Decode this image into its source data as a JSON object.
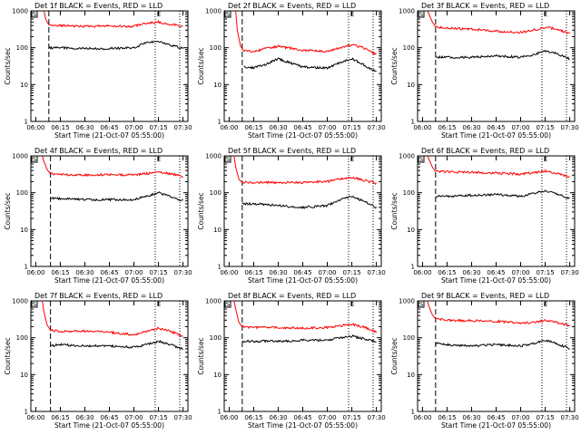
{
  "panels": [
    {
      "title": "Det 1f BLACK = Events, RED = LLD",
      "start_marker": "S",
      "end_marker": "E"
    },
    {
      "title": "Det 2f BLACK = Events, RED = LLD",
      "start_marker": "S",
      "end_marker": "E"
    },
    {
      "title": "Det 3f BLACK = Events, RED = LLD",
      "start_marker": "S",
      "end_marker": "E"
    },
    {
      "title": "Det 4f BLACK = Events, RED = LLD",
      "start_marker": "S",
      "end_marker": "E"
    },
    {
      "title": "Det 5f BLACK = Events, RED = LLD",
      "start_marker": "S",
      "end_marker": "E"
    },
    {
      "title": "Det 6f BLACK = Events, RED = LLD",
      "start_marker": "S",
      "end_marker": "E"
    },
    {
      "title": "Det 7f BLACK = Events, RED = LLD",
      "start_marker": "S",
      "end_marker": "E"
    },
    {
      "title": "Det 8f BLACK = Events, RED = LLD",
      "start_marker": "S",
      "end_marker": "E"
    },
    {
      "title": "Det 9f BLACK = Events, RED = LLD",
      "start_marker": "S",
      "end_marker": "E"
    }
  ],
  "chart_data": [
    {
      "type": "line",
      "title": "Det 1f BLACK = Events, RED = LLD",
      "xlabel": "Start Time (21-Oct-07 05:55:00)",
      "ylabel": "Counts/sec",
      "yscale": "log",
      "ylim": [
        1,
        1000
      ],
      "x_ticks": [
        "06:00",
        "06:15",
        "06:30",
        "06:45",
        "07:00",
        "07:15",
        "07:30"
      ],
      "y_ticks": [
        "1",
        "10",
        "100",
        "1000"
      ],
      "x": [
        "06:05",
        "06:06",
        "06:08",
        "06:15",
        "06:30",
        "06:45",
        "07:00",
        "07:08",
        "07:15",
        "07:22",
        "07:30"
      ],
      "series": [
        {
          "color": "#ff0000",
          "values": [
            1000,
            600,
            420,
            400,
            380,
            390,
            380,
            460,
            500,
            430,
            380
          ]
        },
        {
          "color": "#000000",
          "values": [
            null,
            null,
            100,
            100,
            95,
            95,
            100,
            140,
            150,
            120,
            95
          ]
        }
      ],
      "vlines": [
        {
          "x": "06:08",
          "style": "dashed"
        },
        {
          "x": "07:13",
          "style": "dotted"
        },
        {
          "x": "07:28",
          "style": "dotted"
        }
      ]
    },
    {
      "type": "line",
      "title": "Det 2f BLACK = Events, RED = LLD",
      "xlabel": "Start Time (21-Oct-07 05:55:00)",
      "ylabel": "Counts/sec",
      "yscale": "log",
      "ylim": [
        1,
        1000
      ],
      "x_ticks": [
        "06:00",
        "06:15",
        "06:30",
        "06:45",
        "07:00",
        "07:15",
        "07:30"
      ],
      "y_ticks": [
        "1",
        "10",
        "100",
        "1000"
      ],
      "x": [
        "06:04",
        "06:05",
        "06:07",
        "06:09",
        "06:15",
        "06:22",
        "06:30",
        "06:45",
        "07:00",
        "07:08",
        "07:15",
        "07:22",
        "07:30"
      ],
      "series": [
        {
          "color": "#ff0000",
          "values": [
            1000,
            300,
            110,
            80,
            80,
            95,
            110,
            85,
            80,
            100,
            120,
            100,
            65
          ]
        },
        {
          "color": "#000000",
          "values": [
            null,
            null,
            null,
            30,
            28,
            35,
            50,
            30,
            28,
            40,
            50,
            35,
            22
          ]
        }
      ],
      "vlines": [
        {
          "x": "06:08",
          "style": "dashed"
        },
        {
          "x": "07:13",
          "style": "dotted"
        },
        {
          "x": "07:28",
          "style": "dotted"
        }
      ]
    },
    {
      "type": "line",
      "title": "Det 3f BLACK = Events, RED = LLD",
      "xlabel": "Start Time (21-Oct-07 05:55:00)",
      "ylabel": "Counts/sec",
      "yscale": "log",
      "ylim": [
        1,
        1000
      ],
      "x_ticks": [
        "06:00",
        "06:15",
        "06:30",
        "06:45",
        "07:00",
        "07:15",
        "07:30"
      ],
      "y_ticks": [
        "1",
        "10",
        "100",
        "1000"
      ],
      "x": [
        "06:03",
        "06:04",
        "06:06",
        "06:08",
        "06:15",
        "06:30",
        "06:45",
        "07:00",
        "07:08",
        "07:15",
        "07:22",
        "07:30"
      ],
      "series": [
        {
          "color": "#ff0000",
          "values": [
            1000,
            800,
            500,
            370,
            340,
            320,
            280,
            260,
            300,
            360,
            320,
            240
          ]
        },
        {
          "color": "#000000",
          "values": [
            null,
            null,
            null,
            55,
            55,
            55,
            60,
            55,
            65,
            80,
            70,
            50
          ]
        }
      ],
      "vlines": [
        {
          "x": "06:08",
          "style": "dashed"
        },
        {
          "x": "07:13",
          "style": "dotted"
        },
        {
          "x": "07:28",
          "style": "dotted"
        }
      ]
    },
    {
      "type": "line",
      "title": "Det 4f BLACK = Events, RED = LLD",
      "xlabel": "Start Time (21-Oct-07 05:55:00)",
      "ylabel": "Counts/sec",
      "yscale": "log",
      "ylim": [
        1,
        1000
      ],
      "x_ticks": [
        "06:00",
        "06:15",
        "06:30",
        "06:45",
        "07:00",
        "07:15",
        "07:30"
      ],
      "y_ticks": [
        "1",
        "10",
        "100",
        "1000"
      ],
      "x": [
        "06:04",
        "06:05",
        "06:07",
        "06:09",
        "06:15",
        "06:30",
        "06:45",
        "07:00",
        "07:08",
        "07:15",
        "07:22",
        "07:30"
      ],
      "series": [
        {
          "color": "#ff0000",
          "values": [
            1000,
            700,
            420,
            330,
            310,
            300,
            310,
            300,
            330,
            360,
            330,
            280
          ]
        },
        {
          "color": "#000000",
          "values": [
            null,
            null,
            null,
            70,
            70,
            65,
            65,
            65,
            80,
            100,
            80,
            60
          ]
        }
      ],
      "vlines": [
        {
          "x": "06:09",
          "style": "dashed"
        },
        {
          "x": "07:13",
          "style": "dotted"
        },
        {
          "x": "07:28",
          "style": "dotted"
        }
      ]
    },
    {
      "type": "line",
      "title": "Det 5f BLACK = Events, RED = LLD",
      "xlabel": "Start Time (21-Oct-07 05:55:00)",
      "ylabel": "Counts/sec",
      "yscale": "log",
      "ylim": [
        1,
        1000
      ],
      "x_ticks": [
        "06:00",
        "06:15",
        "06:30",
        "06:45",
        "07:00",
        "07:15",
        "07:30"
      ],
      "y_ticks": [
        "1",
        "10",
        "100",
        "1000"
      ],
      "x": [
        "06:03",
        "06:04",
        "06:06",
        "06:08",
        "06:15",
        "06:30",
        "06:45",
        "07:00",
        "07:08",
        "07:15",
        "07:22",
        "07:30"
      ],
      "series": [
        {
          "color": "#ff0000",
          "values": [
            1000,
            500,
            230,
            190,
            190,
            190,
            190,
            200,
            240,
            260,
            220,
            180
          ]
        },
        {
          "color": "#000000",
          "values": [
            null,
            null,
            null,
            50,
            50,
            45,
            40,
            45,
            65,
            80,
            60,
            40
          ]
        }
      ],
      "vlines": [
        {
          "x": "06:08",
          "style": "dashed"
        },
        {
          "x": "07:13",
          "style": "dotted"
        },
        {
          "x": "07:28",
          "style": "dotted"
        }
      ]
    },
    {
      "type": "line",
      "title": "Det 6f BLACK = Events, RED = LLD",
      "xlabel": "Start Time (21-Oct-07 05:55:00)",
      "ylabel": "Counts/sec",
      "yscale": "log",
      "ylim": [
        1,
        1000
      ],
      "x_ticks": [
        "06:00",
        "06:15",
        "06:30",
        "06:45",
        "07:00",
        "07:15",
        "07:30"
      ],
      "y_ticks": [
        "1",
        "10",
        "100",
        "1000"
      ],
      "x": [
        "06:03",
        "06:04",
        "06:06",
        "06:08",
        "06:15",
        "06:30",
        "06:45",
        "07:00",
        "07:08",
        "07:15",
        "07:22",
        "07:30"
      ],
      "series": [
        {
          "color": "#ff0000",
          "values": [
            1000,
            800,
            500,
            380,
            370,
            360,
            340,
            320,
            350,
            390,
            340,
            270
          ]
        },
        {
          "color": "#000000",
          "values": [
            null,
            null,
            null,
            80,
            80,
            85,
            90,
            80,
            95,
            115,
            95,
            70
          ]
        }
      ],
      "vlines": [
        {
          "x": "06:08",
          "style": "dashed"
        },
        {
          "x": "07:13",
          "style": "dotted"
        },
        {
          "x": "07:28",
          "style": "dotted"
        }
      ]
    },
    {
      "type": "line",
      "title": "Det 7f BLACK = Events, RED = LLD",
      "xlabel": "Start Time (21-Oct-07 05:55:00)",
      "ylabel": "Counts/sec",
      "yscale": "log",
      "ylim": [
        1,
        1000
      ],
      "x_ticks": [
        "06:00",
        "06:15",
        "06:30",
        "06:45",
        "07:00",
        "07:15",
        "07:30"
      ],
      "y_ticks": [
        "1",
        "10",
        "100",
        "1000"
      ],
      "x": [
        "06:04",
        "06:05",
        "06:07",
        "06:09",
        "06:15",
        "06:30",
        "06:45",
        "07:00",
        "07:08",
        "07:15",
        "07:22",
        "07:30"
      ],
      "series": [
        {
          "color": "#ff0000",
          "values": [
            1000,
            500,
            220,
            160,
            150,
            150,
            140,
            120,
            150,
            180,
            150,
            110
          ]
        },
        {
          "color": "#000000",
          "values": [
            null,
            null,
            null,
            60,
            65,
            60,
            60,
            55,
            65,
            80,
            65,
            50
          ]
        }
      ],
      "vlines": [
        {
          "x": "06:09",
          "style": "dashed"
        },
        {
          "x": "07:13",
          "style": "dotted"
        },
        {
          "x": "07:28",
          "style": "dotted"
        }
      ]
    },
    {
      "type": "line",
      "title": "Det 8f BLACK = Events, RED = LLD",
      "xlabel": "Start Time (21-Oct-07 05:55:00)",
      "ylabel": "Counts/sec",
      "yscale": "log",
      "ylim": [
        1,
        1000
      ],
      "x_ticks": [
        "06:00",
        "06:15",
        "06:30",
        "06:45",
        "07:00",
        "07:15",
        "07:30"
      ],
      "y_ticks": [
        "1",
        "10",
        "100",
        "1000"
      ],
      "x": [
        "06:03",
        "06:04",
        "06:06",
        "06:08",
        "06:15",
        "06:30",
        "06:45",
        "07:00",
        "07:08",
        "07:15",
        "07:22",
        "07:30"
      ],
      "series": [
        {
          "color": "#ff0000",
          "values": [
            1000,
            600,
            260,
            200,
            190,
            190,
            180,
            190,
            210,
            230,
            200,
            140
          ]
        },
        {
          "color": "#000000",
          "values": [
            null,
            null,
            null,
            80,
            80,
            80,
            85,
            85,
            100,
            110,
            95,
            80
          ]
        }
      ],
      "vlines": [
        {
          "x": "06:08",
          "style": "dashed"
        },
        {
          "x": "07:13",
          "style": "dotted"
        },
        {
          "x": "07:28",
          "style": "dotted"
        }
      ]
    },
    {
      "type": "line",
      "title": "Det 9f BLACK = Events, RED = LLD",
      "xlabel": "Start Time (21-Oct-07 05:55:00)",
      "ylabel": "Counts/sec",
      "yscale": "log",
      "ylim": [
        1,
        1000
      ],
      "x_ticks": [
        "06:00",
        "06:15",
        "06:30",
        "06:45",
        "07:00",
        "07:15",
        "07:30"
      ],
      "y_ticks": [
        "1",
        "10",
        "100",
        "1000"
      ],
      "x": [
        "06:03",
        "06:04",
        "06:06",
        "06:08",
        "06:15",
        "06:30",
        "06:45",
        "07:00",
        "07:08",
        "07:15",
        "07:22",
        "07:30"
      ],
      "series": [
        {
          "color": "#ff0000",
          "values": [
            1000,
            700,
            420,
            330,
            300,
            290,
            280,
            250,
            260,
            300,
            260,
            210
          ]
        },
        {
          "color": "#000000",
          "values": [
            null,
            null,
            null,
            70,
            65,
            60,
            65,
            60,
            70,
            85,
            70,
            50
          ]
        }
      ],
      "vlines": [
        {
          "x": "06:08",
          "style": "dashed"
        },
        {
          "x": "07:13",
          "style": "dotted"
        },
        {
          "x": "07:28",
          "style": "dotted"
        }
      ]
    }
  ]
}
